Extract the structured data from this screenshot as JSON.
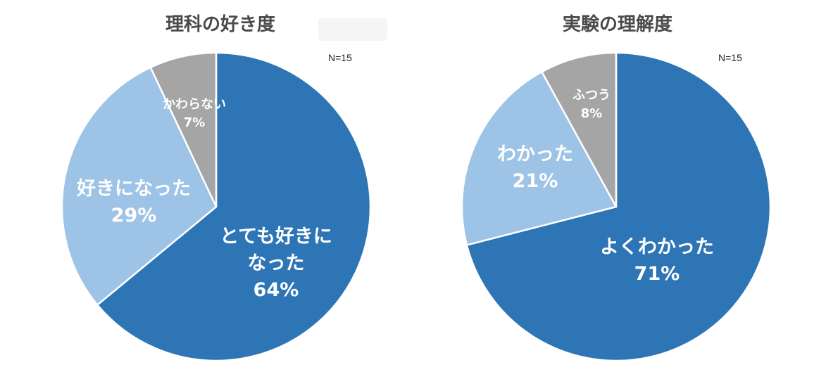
{
  "chart_data": [
    {
      "type": "pie",
      "title": "理科の好き度",
      "annotation": "N=15",
      "slices": [
        {
          "label": "とても好きに なった",
          "value": 64,
          "value_label": "64%",
          "color": "#2e75b6"
        },
        {
          "label": "好きになった",
          "value": 29,
          "value_label": "29%",
          "color": "#9dc3e6"
        },
        {
          "label": "かわらない",
          "value": 7,
          "value_label": "7%",
          "color": "#a5a5a5"
        }
      ]
    },
    {
      "type": "pie",
      "title": "実験の理解度",
      "annotation": "N=15",
      "slices": [
        {
          "label": "よくわかった",
          "value": 71,
          "value_label": "71%",
          "color": "#2e75b6"
        },
        {
          "label": "わかった",
          "value": 21,
          "value_label": "21%",
          "color": "#9dc3e6"
        },
        {
          "label": "ふつう",
          "value": 8,
          "value_label": "8%",
          "color": "#a5a5a5"
        }
      ]
    }
  ]
}
